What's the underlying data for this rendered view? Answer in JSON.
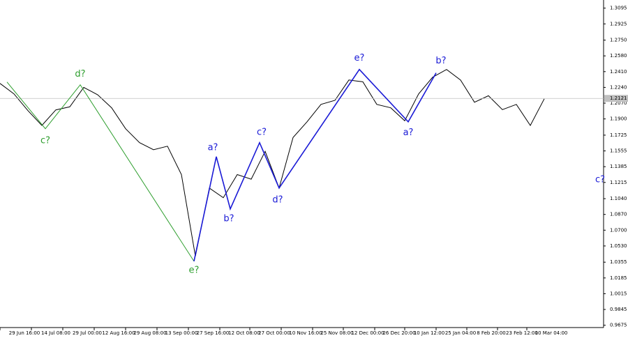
{
  "chart_data": {
    "type": "line",
    "color": "#000000",
    "values": [
      1.2283,
      1.217,
      1.199,
      1.183,
      1.1997,
      1.203,
      1.224,
      1.216,
      1.202,
      1.1794,
      1.1644,
      1.1568,
      1.1606,
      1.13,
      1.042,
      1.1155,
      1.105,
      1.13,
      1.125,
      1.155,
      1.1155,
      1.17,
      1.1869,
      1.2057,
      1.21,
      1.232,
      1.23,
      1.2057,
      1.202,
      1.188,
      1.217,
      1.235,
      1.2433,
      1.232,
      1.208,
      1.215,
      1.2,
      1.2057,
      1.183,
      1.2117
    ],
    "xlim": [
      0,
      43.25
    ],
    "ylim": [
      0.965,
      1.316
    ],
    "xticks": [
      {
        "value": 1.75,
        "label": "29 Jun 16:00"
      },
      {
        "value": 4,
        "label": "14 Jul 08:00"
      },
      {
        "value": 6.25,
        "label": "29 Jul 00:00"
      },
      {
        "value": 8.5,
        "label": "12 Aug 16:00"
      },
      {
        "value": 10.75,
        "label": "29 Aug 08:00"
      },
      {
        "value": 13,
        "label": "13 Sep 00:00"
      },
      {
        "value": 15.25,
        "label": "27 Sep 16:00"
      },
      {
        "value": 17.5,
        "label": "12 Oct 08:00"
      },
      {
        "value": 19.65,
        "label": "27 Oct 00:00"
      },
      {
        "value": 21.9,
        "label": "10 Nov 16:00"
      },
      {
        "value": 24.15,
        "label": "25 Nov 08:00"
      },
      {
        "value": 26.35,
        "label": "12 Dec 00:00"
      },
      {
        "value": 28.6,
        "label": "26 Dec 20:00"
      },
      {
        "value": 30.75,
        "label": "10 Jan 12:00"
      },
      {
        "value": 33,
        "label": "25 Jan 04:00"
      },
      {
        "value": 35.2,
        "label": "8 Feb 20:00"
      },
      {
        "value": 37.4,
        "label": "23 Feb 12:00"
      },
      {
        "value": 39.5,
        "label": "10 Mar 04:00"
      }
    ],
    "yticks": [
      1.3095,
      1.2925,
      {
        "value": 1.275,
        "label": "1.2750"
      },
      {
        "value": 1.258,
        "label": "1.2580"
      },
      {
        "value": 1.241,
        "label": "1.2410"
      },
      {
        "value": 1.224,
        "label": "1.2240"
      },
      {
        "value": 1.207,
        "label": "1.2070"
      },
      {
        "value": 1.19,
        "label": "1.1900"
      },
      1.1725,
      1.1555,
      1.1385,
      1.1215,
      {
        "value": 1.104,
        "label": "1.1040"
      },
      {
        "value": 1.087,
        "label": "1.0870"
      },
      {
        "value": 1.07,
        "label": "1.0700"
      },
      {
        "value": 1.053,
        "label": "1.0530"
      },
      1.0355,
      1.0185,
      1.0015,
      0.9845,
      0.9675
    ],
    "last_price": 1.2121,
    "waves": [
      {
        "color": "#2e9e2e",
        "x": [
          0.5,
          3.25,
          5.75,
          13.9
        ],
        "y": [
          1.2298,
          1.1794,
          1.2268,
          1.0365
        ]
      },
      {
        "color": "#1a1ad6",
        "x": [
          13.9,
          15.5,
          16.5,
          18.6,
          20,
          25.75,
          29.25,
          31.25
        ],
        "y": [
          1.0365,
          1.1493,
          1.0929,
          1.1644,
          1.1155,
          1.2433,
          1.1869,
          1.2396
        ]
      }
    ],
    "annotations": [
      {
        "text": "c?",
        "color": "#2e9e2e",
        "x": 3.25,
        "y": 1.1666
      },
      {
        "text": "d?",
        "color": "#2e9e2e",
        "x": 5.75,
        "y": 1.2381
      },
      {
        "text": "e?",
        "color": "#2e9e2e",
        "x": 13.9,
        "y": 1.0268
      },
      {
        "text": "a?",
        "color": "#1a1ad6",
        "x": 15.25,
        "y": 1.1591
      },
      {
        "text": "b?",
        "color": "#1a1ad6",
        "x": 16.4,
        "y": 1.0824
      },
      {
        "text": "c?",
        "color": "#1a1ad6",
        "x": 18.75,
        "y": 1.1756
      },
      {
        "text": "d?",
        "color": "#1a1ad6",
        "x": 19.9,
        "y": 1.1027
      },
      {
        "text": "e?",
        "color": "#1a1ad6",
        "x": 25.75,
        "y": 1.2554
      },
      {
        "text": "a?",
        "color": "#1a1ad6",
        "x": 29.25,
        "y": 1.1749
      },
      {
        "text": "b?",
        "color": "#1a1ad6",
        "x": 31.6,
        "y": 1.2524
      },
      {
        "text": "c?",
        "color": "#1a1ad6",
        "x": 43.0,
        "y": 1.1245
      }
    ]
  }
}
